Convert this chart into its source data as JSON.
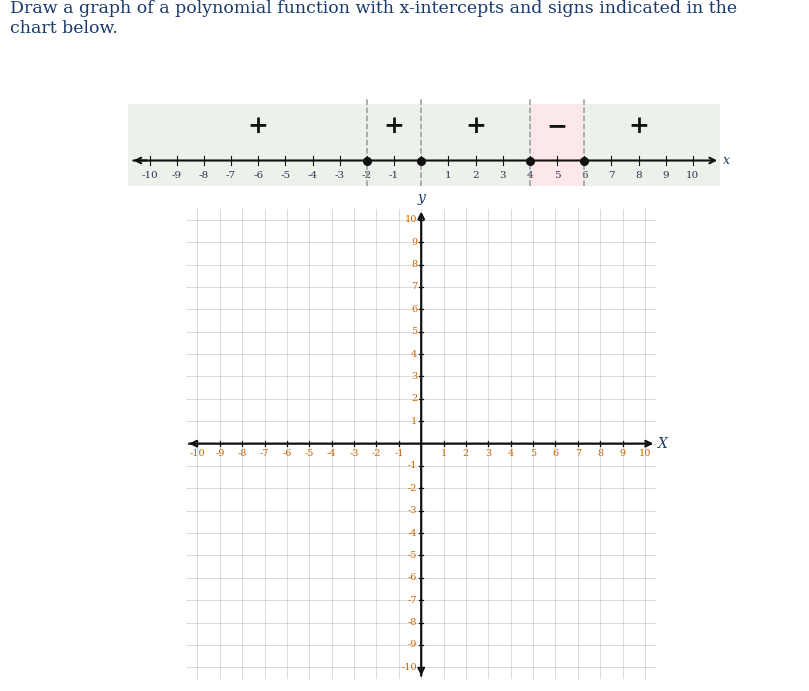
{
  "title_text": "Draw a graph of a polynomial function with x-intercepts and signs indicated in the\nchart below.",
  "title_color": "#1a3a6b",
  "title_fontsize": 12.5,
  "intercepts": [
    -2,
    0,
    4,
    6
  ],
  "signs": [
    "+",
    "+",
    "+",
    "−",
    "+"
  ],
  "sign_positions": [
    -6,
    -1,
    2,
    5,
    8
  ],
  "green_bg": "#eaf2ea",
  "pink_bg": "#fce8e8",
  "dashed_line_color": "#999999",
  "axis_color": "#111111",
  "grid_color": "#cccccc",
  "intercept_dot_color": "#111111",
  "sign_fontsize": 18,
  "sign_color": "#111111",
  "axis_label_color": "#1a3a6b",
  "tick_label_color_x": "#cc6600",
  "tick_label_color_y": "#cc6600",
  "nl_tick_color": "#333355",
  "nl_fontsize": 7.5
}
